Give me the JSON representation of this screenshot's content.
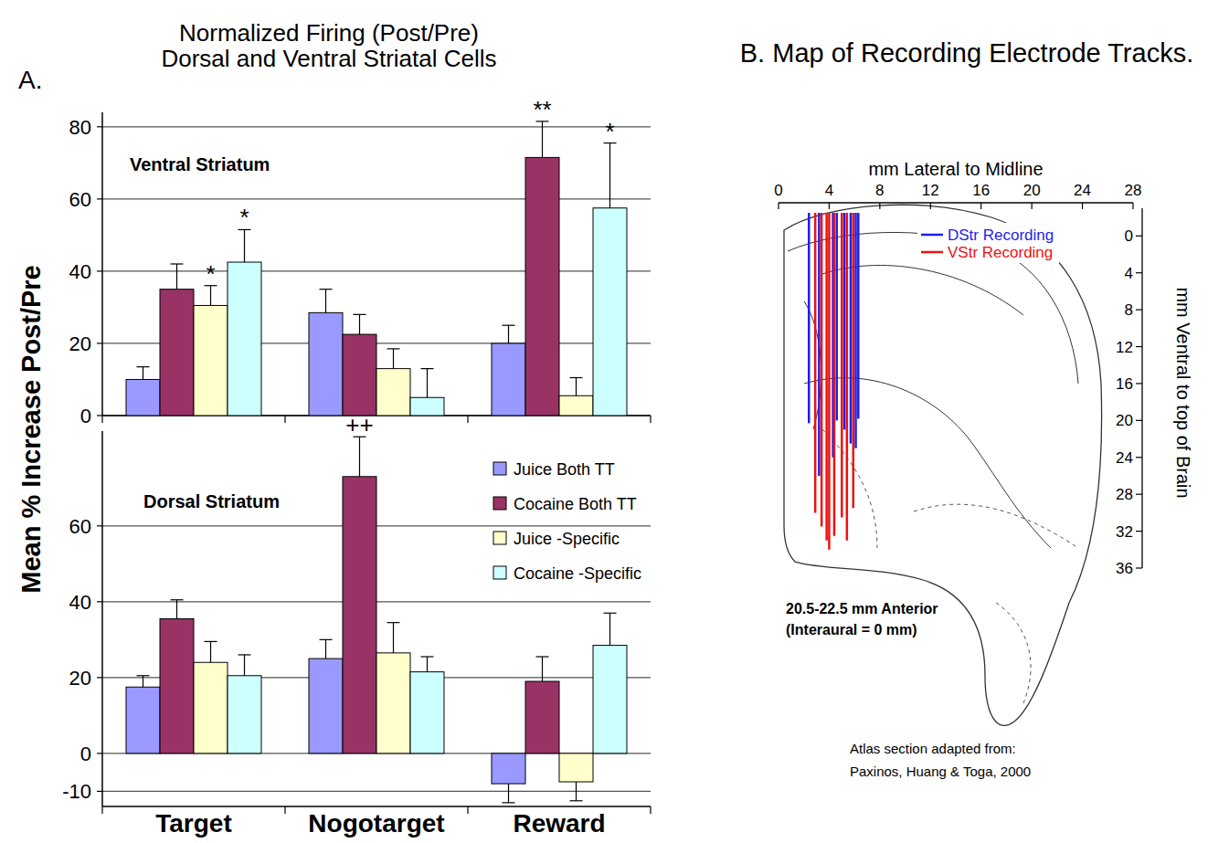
{
  "figure": {
    "title": [
      "Normalized Firing (Post/Pre)",
      "Dorsal and Ventral Striatal Cells"
    ],
    "panel": "A.",
    "ylabel": "Mean % Increase Post/Pre"
  },
  "chart_data": [
    {
      "type": "bar",
      "title": "Ventral Striatum",
      "categories": [
        "Target",
        "Nogotarget",
        "Reward"
      ],
      "series": [
        {
          "color": "#9999ff",
          "values": [
            10,
            28.5,
            20
          ],
          "errors": [
            3.5,
            6.5,
            5
          ]
        },
        {
          "color": "#993366",
          "values": [
            35,
            22.5,
            71.5
          ],
          "errors": [
            7,
            5.5,
            10
          ],
          "significance": [
            null,
            null,
            "**"
          ]
        },
        {
          "color": "#ffffcc",
          "values": [
            30.5,
            13,
            5.5
          ],
          "errors": [
            5.5,
            5.5,
            5
          ],
          "significance": [
            "*",
            null,
            null
          ]
        },
        {
          "color": "#ccffff",
          "values": [
            42.5,
            5,
            57.5
          ],
          "errors": [
            9,
            8,
            18
          ],
          "significance": [
            "*",
            null,
            "*"
          ]
        }
      ],
      "ylim": [
        0,
        84
      ],
      "yticks": [
        0,
        20,
        40,
        60,
        80
      ],
      "grid": true,
      "tick_labels": "y"
    },
    {
      "type": "bar",
      "title": "Dorsal Striatum",
      "categories": [
        "Target",
        "Nogotarget",
        "Reward"
      ],
      "series": [
        {
          "name": "Juice Both TT",
          "color": "#9999ff",
          "values": [
            17.5,
            25,
            -8
          ],
          "errors": [
            3,
            5,
            5
          ]
        },
        {
          "name": "Cocaine Both TT",
          "color": "#993366",
          "values": [
            35.5,
            73,
            19
          ],
          "errors": [
            5,
            10.5,
            6.5
          ],
          "significance": [
            null,
            "++",
            null
          ]
        },
        {
          "name": "Juice -Specific",
          "color": "#ffffcc",
          "values": [
            24,
            26.5,
            -7.5
          ],
          "errors": [
            5.5,
            8,
            5
          ]
        },
        {
          "name": "Cocaine -Specific",
          "color": "#ccffff",
          "values": [
            20.5,
            21.5,
            28.5
          ],
          "errors": [
            5.5,
            4,
            8.5
          ]
        }
      ],
      "ylim": [
        -14,
        85
      ],
      "yticks": [
        -10,
        0,
        20,
        40,
        60
      ],
      "grid": true,
      "legend": "upper right"
    }
  ],
  "map": {
    "title": "B. Map of Recording Electrode Tracks.",
    "xlabel": "mm Lateral to Midline",
    "ylabel": "mm Ventral to top of Brain",
    "xlim": [
      0,
      28
    ],
    "xticks": [
      0,
      4,
      8,
      12,
      16,
      20,
      24,
      28
    ],
    "ylim": [
      -3,
      36
    ],
    "yticks": [
      0,
      4,
      8,
      12,
      16,
      20,
      24,
      28,
      32,
      36
    ],
    "track_top": -2.5,
    "series": [
      {
        "name": "DStr Recording",
        "color": "#1f1fe6",
        "tracks": [
          {
            "lateral": 2.4,
            "depth": 20.3
          },
          {
            "lateral": 3.2,
            "depth": 26
          },
          {
            "lateral": 4.3,
            "depth": 24
          },
          {
            "lateral": 4.6,
            "depth": 20
          },
          {
            "lateral": 5.2,
            "depth": 21
          },
          {
            "lateral": 5.7,
            "depth": 22.5
          },
          {
            "lateral": 6.1,
            "depth": 23
          },
          {
            "lateral": 6.3,
            "depth": 19.8
          }
        ]
      },
      {
        "name": "VStr Recording",
        "color": "#ee1111",
        "tracks": [
          {
            "lateral": 2.9,
            "depth": 30
          },
          {
            "lateral": 3.4,
            "depth": 31.5
          },
          {
            "lateral": 3.8,
            "depth": 33
          },
          {
            "lateral": 4.0,
            "depth": 34
          },
          {
            "lateral": 4.4,
            "depth": 32.5
          },
          {
            "lateral": 5.0,
            "depth": 30.5
          },
          {
            "lateral": 5.4,
            "depth": 33
          },
          {
            "lateral": 5.9,
            "depth": 29.5
          }
        ]
      }
    ],
    "caption": [
      "20.5-22.5 mm Anterior",
      "(Interaural = 0 mm)"
    ],
    "credit": [
      "Atlas section adapted from:",
      "Paxinos, Huang & Toga, 2000"
    ]
  }
}
